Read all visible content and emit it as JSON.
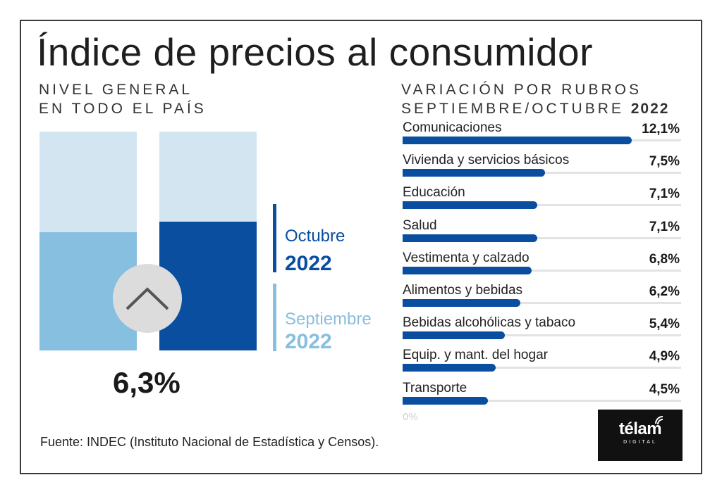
{
  "title": "Índice de precios al consumidor",
  "left_subtitle": [
    "NIVEL GENERAL",
    "EN TODO EL PAÍS"
  ],
  "right_subtitle": {
    "line1": "VARIACIÓN POR RUBROS",
    "line2": "SEPTIEMBRE/OCTUBRE",
    "year": "2022"
  },
  "legend": {
    "octubre": {
      "month": "Octubre",
      "year": "2022"
    },
    "septiembre": {
      "month": "Septiembre",
      "year": "2022"
    }
  },
  "headline_value": "6,3%",
  "source": "Fuente: INDEC (Instituto Nacional de Estadística y Censos).",
  "logo": {
    "name": "télam",
    "sub": "DIGITAL"
  },
  "colors": {
    "dark_blue": "#0a4ea0",
    "light_blue": "#86bfdf",
    "pale_blue": "#d4e5f2",
    "track": "#e3e3e3"
  },
  "icon": "chevron-up-icon",
  "chart_data": [
    {
      "type": "bar",
      "categories": [
        "Septiembre 2022",
        "Octubre 2022"
      ],
      "relative_fill": [
        0.54,
        0.59
      ],
      "ylim": [
        0,
        1
      ]
    },
    {
      "type": "bar",
      "orientation": "horizontal",
      "categories": [
        "Comunicaciones",
        "Vivienda y servicios básicos",
        "Educación",
        "Salud",
        "Vestimenta y calzado",
        "Alimentos y bebidas",
        "Bebidas alcohólicas y tabaco",
        "Equip. y mant. del hogar",
        "Transporte"
      ],
      "values": [
        12.1,
        7.5,
        7.1,
        7.1,
        6.8,
        6.2,
        5.4,
        4.9,
        4.5
      ],
      "labels": [
        "12,1%",
        "7,5%",
        "7,1%",
        "7,1%",
        "6,8%",
        "6,2%",
        "5,4%",
        "4,9%",
        "4,5%"
      ],
      "xlim": [
        0,
        14.7
      ],
      "axis_label": "0%"
    }
  ]
}
